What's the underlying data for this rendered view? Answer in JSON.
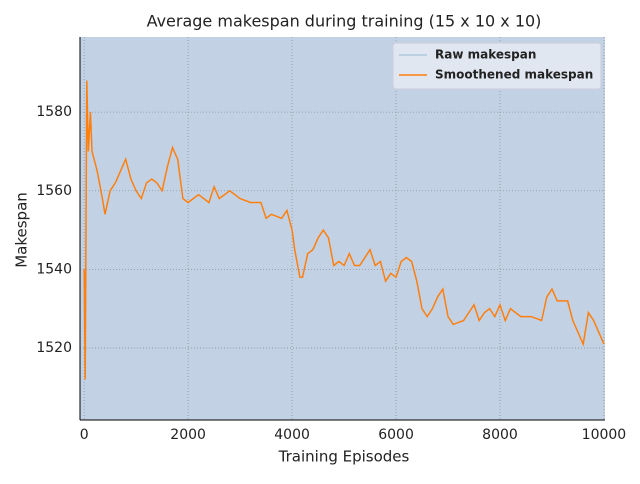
{
  "chart_data": {
    "type": "line",
    "title": "Average makespan during training (15 x 10 x 10)",
    "x_label": "Training Episodes",
    "y_label": "Makespan",
    "x": [
      0,
      20,
      50,
      80,
      120,
      150,
      250,
      350,
      400,
      500,
      600,
      700,
      800,
      900,
      1000,
      1100,
      1200,
      1300,
      1400,
      1500,
      1600,
      1700,
      1800,
      1900,
      2000,
      2200,
      2400,
      2500,
      2600,
      2800,
      3000,
      3200,
      3400,
      3500,
      3600,
      3800,
      3900,
      4000,
      4050,
      4150,
      4200,
      4300,
      4400,
      4500,
      4600,
      4700,
      4800,
      4900,
      5000,
      5100,
      5200,
      5300,
      5500,
      5600,
      5700,
      5800,
      5900,
      6000,
      6100,
      6200,
      6300,
      6400,
      6500,
      6600,
      6700,
      6800,
      6900,
      7000,
      7100,
      7300,
      7400,
      7500,
      7600,
      7700,
      7800,
      7900,
      8000,
      8100,
      8200,
      8400,
      8600,
      8800,
      8900,
      9000,
      9100,
      9300,
      9400,
      9500,
      9600,
      9700,
      9800,
      9900,
      10000
    ],
    "series": [
      {
        "name": "Raw makespan",
        "color": "#b0c8e0",
        "values": [
          1540,
          1512,
          1588,
          1570,
          1580,
          1570,
          1565,
          1558,
          1554,
          1560,
          1562,
          1565,
          1568,
          1563,
          1560,
          1558,
          1562,
          1563,
          1562,
          1560,
          1566,
          1571,
          1568,
          1558,
          1557,
          1559,
          1557,
          1561,
          1558,
          1560,
          1558,
          1557,
          1557,
          1553,
          1554,
          1553,
          1555,
          1550,
          1545,
          1538,
          1538,
          1544,
          1545,
          1548,
          1550,
          1548,
          1541,
          1542,
          1541,
          1544,
          1541,
          1541,
          1545,
          1541,
          1542,
          1537,
          1539,
          1538,
          1542,
          1543,
          1542,
          1537,
          1530,
          1528,
          1530,
          1533,
          1535,
          1528,
          1526,
          1527,
          1529,
          1531,
          1527,
          1529,
          1530,
          1528,
          1531,
          1527,
          1530,
          1528,
          1528,
          1527,
          1533,
          1535,
          1532,
          1532,
          1527,
          1524,
          1521,
          1529,
          1527,
          1524,
          1521
        ]
      },
      {
        "name": "Smoothened makespan",
        "color": "#ff7f0e",
        "values": [
          1540,
          1512,
          1588,
          1570,
          1580,
          1570,
          1565,
          1558,
          1554,
          1560,
          1562,
          1565,
          1568,
          1563,
          1560,
          1558,
          1562,
          1563,
          1562,
          1560,
          1566,
          1571,
          1568,
          1558,
          1557,
          1559,
          1557,
          1561,
          1558,
          1560,
          1558,
          1557,
          1557,
          1553,
          1554,
          1553,
          1555,
          1550,
          1545,
          1538,
          1538,
          1544,
          1545,
          1548,
          1550,
          1548,
          1541,
          1542,
          1541,
          1544,
          1541,
          1541,
          1545,
          1541,
          1542,
          1537,
          1539,
          1538,
          1542,
          1543,
          1542,
          1537,
          1530,
          1528,
          1530,
          1533,
          1535,
          1528,
          1526,
          1527,
          1529,
          1531,
          1527,
          1529,
          1530,
          1528,
          1531,
          1527,
          1530,
          1528,
          1528,
          1527,
          1533,
          1535,
          1532,
          1532,
          1527,
          1524,
          1521,
          1529,
          1527,
          1524,
          1521
        ]
      }
    ],
    "xlim": [
      -80,
      10020
    ],
    "xticks": [
      0,
      2000,
      4000,
      6000,
      8000,
      10000
    ],
    "ylim": [
      1501.7,
      1599.1
    ],
    "yticks": [
      1520,
      1540,
      1560,
      1580
    ],
    "grid": true,
    "legend": "upper right",
    "background": "#c2d2e4"
  }
}
